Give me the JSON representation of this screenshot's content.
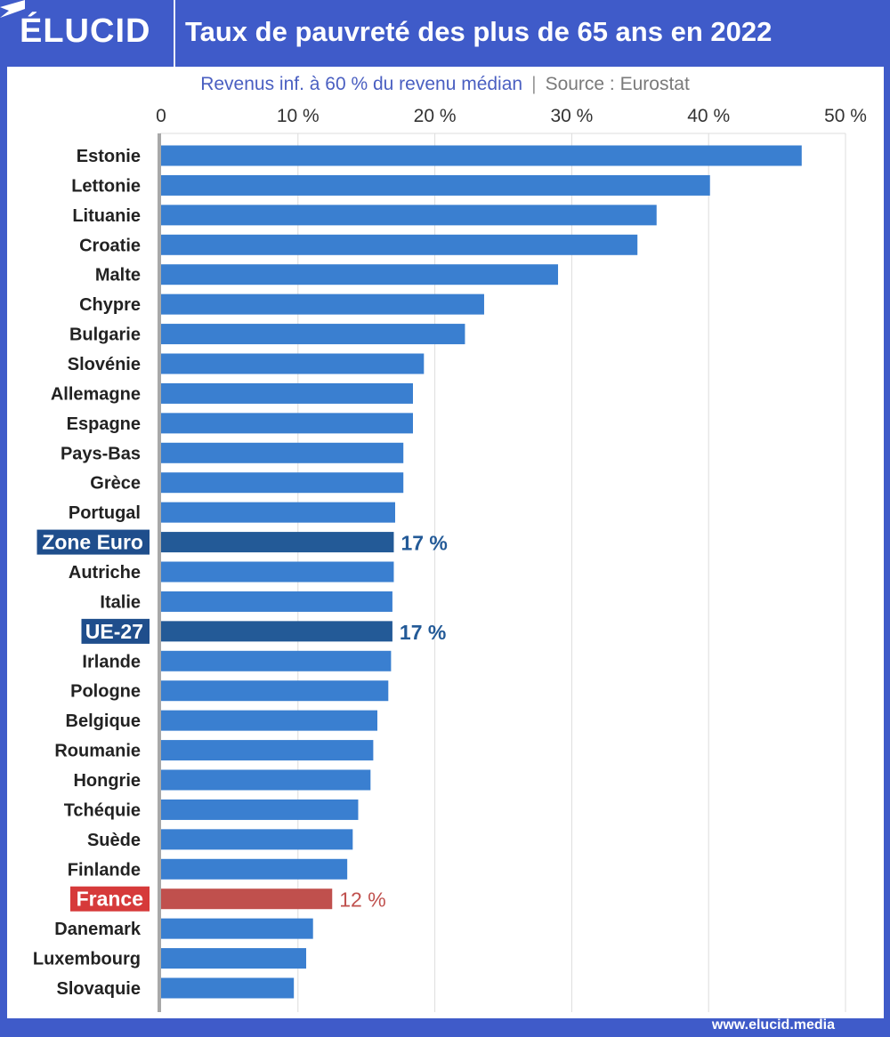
{
  "header": {
    "logo": "ÉLUCID",
    "title": "Taux de pauvreté des plus de 65 ans en 2022"
  },
  "footer": {
    "url": "www.elucid.media",
    "icon": "elucid-flag-icon"
  },
  "colors": {
    "background": "#3f5bc9",
    "bar": "#3a7fd0",
    "bar_highlight": "#235a97",
    "bar_france": "#c0504d",
    "label_highlight": "#1f4e8c",
    "label_france": "#d63a3a"
  },
  "chart_data": {
    "type": "bar",
    "orientation": "horizontal",
    "title": "Taux de pauvreté des plus de 65 ans en 2022",
    "subtitle": "Revenus inf. à 60 % du revenu médian",
    "source": "Source : Eurostat",
    "xlim": [
      0,
      50
    ],
    "ticks": [
      "0",
      "10 %",
      "20 %",
      "30 %",
      "40 %",
      "50 %"
    ],
    "tick_values": [
      0,
      10,
      20,
      30,
      40,
      50
    ],
    "grid": true,
    "categories": [
      "Estonie",
      "Lettonie",
      "Lituanie",
      "Croatie",
      "Malte",
      "Chypre",
      "Bulgarie",
      "Slovénie",
      "Allemagne",
      "Espagne",
      "Pays-Bas",
      "Grèce",
      "Portugal",
      "Zone Euro",
      "Autriche",
      "Italie",
      "UE-27",
      "Irlande",
      "Pologne",
      "Belgique",
      "Roumanie",
      "Hongrie",
      "Tchéquie",
      "Suède",
      "Finlande",
      "France",
      "Danemark",
      "Luxembourg",
      "Slovaquie"
    ],
    "values": [
      46.8,
      40.1,
      36.2,
      34.8,
      29.0,
      23.6,
      22.2,
      19.2,
      18.4,
      18.4,
      17.7,
      17.7,
      17.1,
      17.0,
      17.0,
      16.9,
      16.9,
      16.8,
      16.6,
      15.8,
      15.5,
      15.3,
      14.4,
      14.0,
      13.6,
      12.5,
      11.1,
      10.6,
      9.7
    ],
    "highlights": {
      "Zone Euro": {
        "label": "17 %",
        "style": "highlight"
      },
      "UE-27": {
        "label": "17 %",
        "style": "highlight"
      },
      "France": {
        "label": "12 %",
        "style": "france"
      }
    }
  }
}
